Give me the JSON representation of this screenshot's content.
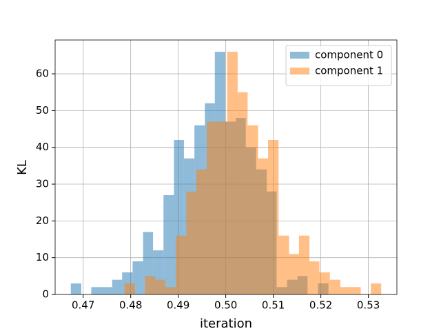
{
  "chart_data": {
    "type": "histogram",
    "xlabel": "iteration",
    "ylabel": "KL",
    "xlim": [
      0.4641,
      0.536
    ],
    "ylim": [
      0,
      69.2
    ],
    "xticks": [
      0.47,
      0.48,
      0.49,
      {
        "value": 0.5,
        "label": "0.50"
      },
      0.51,
      0.52,
      0.53
    ],
    "yticks": [
      0,
      10,
      20,
      30,
      40,
      50,
      60
    ],
    "grid": true,
    "legend": "upper right",
    "alpha": 0.5,
    "series": [
      {
        "name": "component 0",
        "color": "#1f77b4",
        "bins": [
          0.4674,
          0.4696,
          0.4717,
          0.4739,
          0.4761,
          0.4782,
          0.4804,
          0.4826,
          0.4847,
          0.4869,
          0.4891,
          0.4912,
          0.4934,
          0.4956,
          0.4977,
          0.4999,
          0.5021,
          0.5042,
          0.5064,
          0.5086,
          0.5107,
          0.5129,
          0.5151,
          0.5172,
          0.5194,
          0.5216
        ],
        "values": [
          3,
          0,
          2,
          2,
          4,
          6,
          9,
          17,
          12,
          27,
          42,
          37,
          46,
          52,
          66,
          47,
          48,
          40,
          34,
          28,
          2,
          4,
          5,
          0,
          3
        ]
      },
      {
        "name": "component 1",
        "color": "#ff7f0e",
        "bins": [
          0.4787,
          0.4809,
          0.483,
          0.4852,
          0.4873,
          0.4895,
          0.4917,
          0.4938,
          0.496,
          0.4981,
          0.5003,
          0.5025,
          0.5046,
          0.5068,
          0.5089,
          0.5111,
          0.5133,
          0.5154,
          0.5176,
          0.5197,
          0.5219,
          0.5241,
          0.5262,
          0.5284,
          0.5305,
          0.5327
        ],
        "values": [
          3,
          0,
          5,
          4,
          2,
          16,
          28,
          34,
          47,
          47,
          66,
          55,
          46,
          37,
          42,
          16,
          11,
          16,
          9,
          6,
          4,
          2,
          2,
          0,
          3
        ]
      }
    ]
  }
}
